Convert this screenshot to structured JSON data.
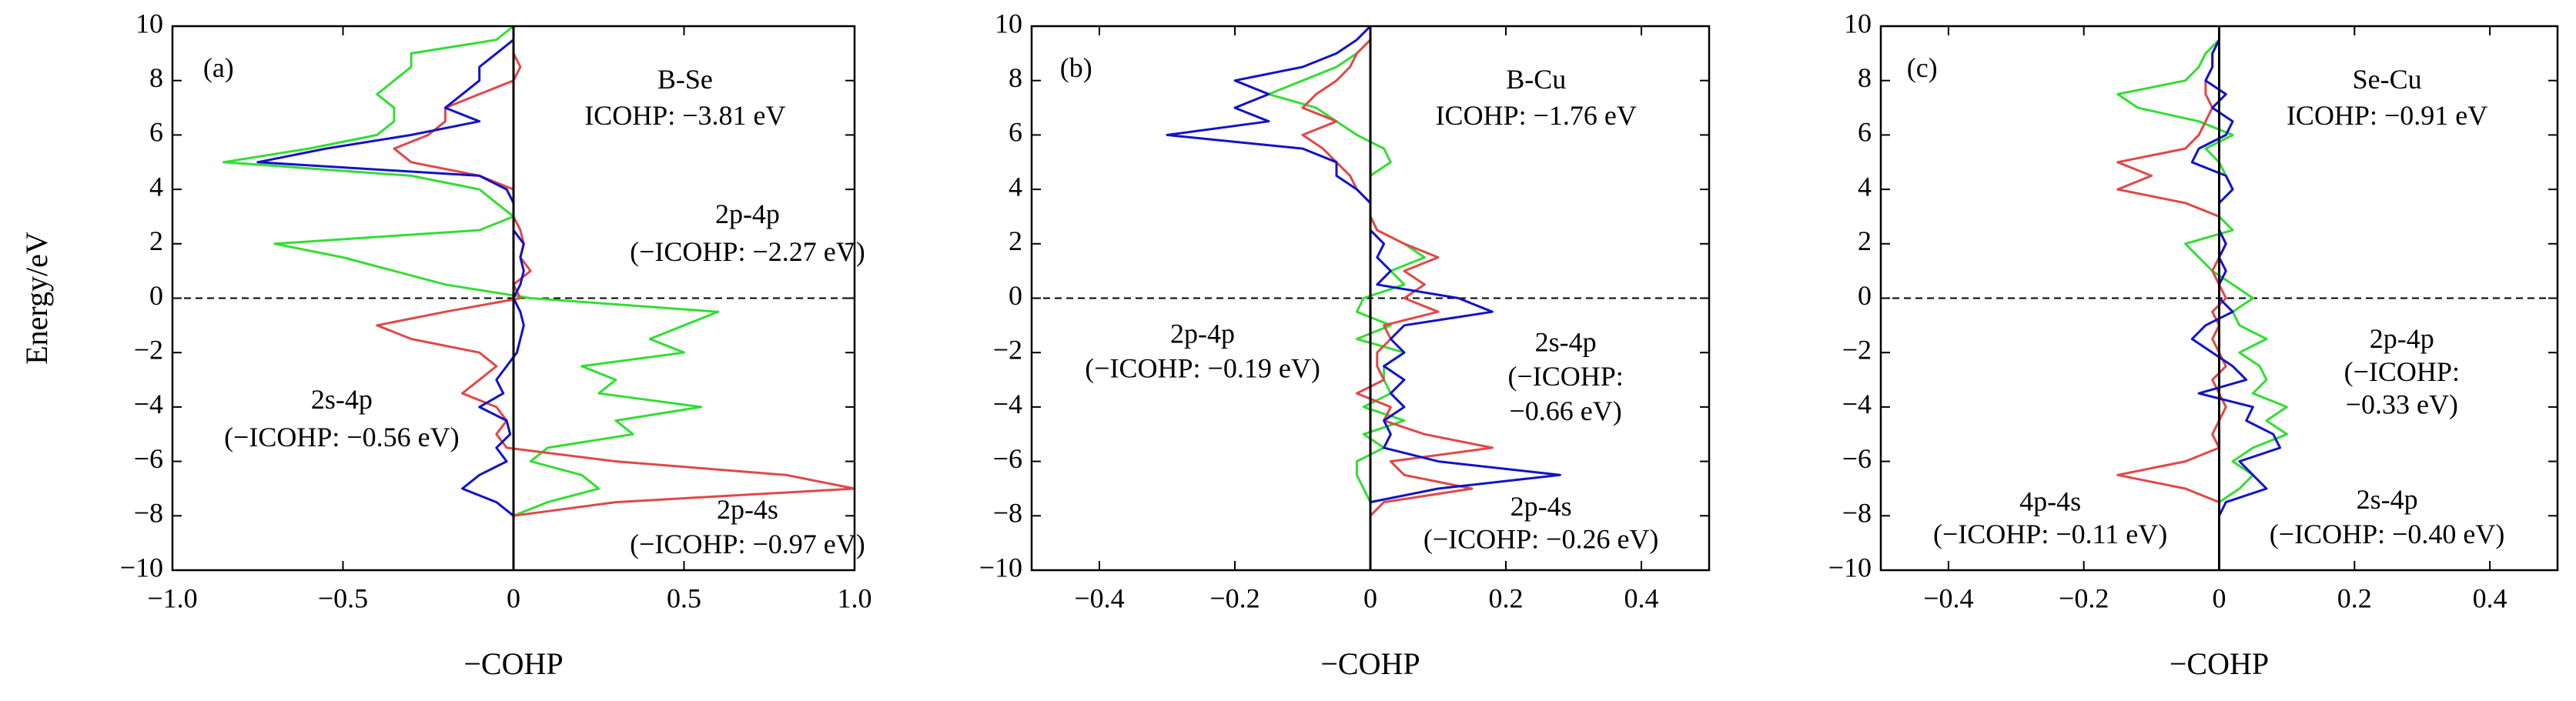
{
  "chart_data": [
    {
      "type": "line",
      "panel_label": "(a)",
      "title": "B-Se",
      "subtitle": "ICOHP: −3.81 eV",
      "ylabel": "Energy/eV",
      "xlabel": "−COHP",
      "xlim": [
        -1,
        1
      ],
      "xticks": [
        {
          "value": -1,
          "label": "−1.0"
        },
        {
          "value": -0.5,
          "label": "−0.5"
        },
        0,
        0.5,
        {
          "value": 1,
          "label": "1.0"
        }
      ],
      "ylim": [
        -10,
        10
      ],
      "yticks": [
        {
          "value": -10,
          "label": "−10"
        },
        {
          "value": -8,
          "label": "−8"
        },
        {
          "value": -6,
          "label": "−6"
        },
        {
          "value": -4,
          "label": "−4"
        },
        {
          "value": -2,
          "label": "−2"
        },
        0,
        2,
        4,
        6,
        8,
        10
      ],
      "y": [
        10,
        9.5,
        9,
        8.5,
        8,
        7.5,
        7,
        6.5,
        6,
        5.5,
        5,
        4.5,
        4,
        3.5,
        3,
        2.5,
        2,
        1.5,
        1,
        0.5,
        0,
        -0.5,
        -1,
        -1.5,
        -2,
        -2.5,
        -3,
        -3.5,
        -4,
        -4.5,
        -5,
        -5.5,
        -6,
        -6.5,
        -7,
        -7.5,
        -8
      ],
      "series": [
        {
          "name": "2p-4p",
          "color": "#33dd33",
          "values": [
            0,
            -0.05,
            -0.3,
            -0.3,
            -0.35,
            -0.4,
            -0.35,
            -0.35,
            -0.4,
            -0.6,
            -0.85,
            -0.3,
            -0.1,
            -0.05,
            0,
            -0.1,
            -0.7,
            -0.5,
            -0.35,
            -0.2,
            0.05,
            0.6,
            0.5,
            0.4,
            0.5,
            0.2,
            0.3,
            0.25,
            0.55,
            0.3,
            0.35,
            0.1,
            0.05,
            0.2,
            0.25,
            0.1,
            0
          ]
        },
        {
          "name": "2p-4s",
          "color": "#e04848",
          "values": [
            0,
            0,
            0,
            0.02,
            0,
            -0.1,
            -0.2,
            -0.2,
            -0.25,
            -0.35,
            -0.3,
            -0.1,
            0,
            0,
            0,
            0.02,
            0.03,
            0.02,
            0.05,
            0,
            0.02,
            -0.2,
            -0.4,
            -0.3,
            -0.1,
            -0.05,
            -0.1,
            -0.15,
            -0.05,
            -0.02,
            -0.05,
            -0.02,
            0.3,
            0.8,
            1.0,
            0.3,
            0
          ]
        },
        {
          "name": "2s-4p",
          "color": "#1212c8",
          "values": [
            0,
            0,
            -0.05,
            -0.1,
            -0.1,
            -0.15,
            -0.2,
            -0.1,
            -0.3,
            -0.55,
            -0.75,
            -0.1,
            -0.02,
            0,
            0,
            0,
            0.03,
            0.02,
            0.03,
            0.02,
            0,
            0.02,
            0.03,
            0.02,
            0.01,
            -0.02,
            -0.05,
            -0.03,
            -0.1,
            -0.02,
            -0.01,
            -0.05,
            -0.02,
            -0.1,
            -0.15,
            -0.05,
            0
          ]
        }
      ],
      "annotations": [
        {
          "color": "#33dd33",
          "lines": [
            "2p-4p",
            "(−ICOHP: −2.27 eV)"
          ]
        },
        {
          "color": "#1212c8",
          "lines": [
            "2s-4p",
            "(−ICOHP: −0.56 eV)"
          ]
        },
        {
          "color": "#e04848",
          "lines": [
            "2p-4s",
            "(−ICOHP: −0.97 eV)"
          ]
        }
      ]
    },
    {
      "type": "line",
      "panel_label": "(b)",
      "title": "B-Cu",
      "subtitle": "ICOHP: −1.76 eV",
      "xlabel": "−COHP",
      "xlim": [
        -0.5,
        0.5
      ],
      "xticks": [
        {
          "value": -0.4,
          "label": "−0.4"
        },
        {
          "value": -0.2,
          "label": "−0.2"
        },
        0,
        0.2,
        0.4
      ],
      "ylim": [
        -10,
        10
      ],
      "yticks": [
        {
          "value": -10,
          "label": "−10"
        },
        {
          "value": -8,
          "label": "−8"
        },
        {
          "value": -6,
          "label": "−6"
        },
        {
          "value": -4,
          "label": "−4"
        },
        {
          "value": -2,
          "label": "−2"
        },
        0,
        2,
        4,
        6,
        8,
        10
      ],
      "y": [
        10,
        9.5,
        9,
        8.5,
        8,
        7.5,
        7,
        6.5,
        6,
        5.5,
        5,
        4.5,
        4,
        3.5,
        3,
        2.5,
        2,
        1.5,
        1,
        0.5,
        0,
        -0.5,
        -1,
        -1.5,
        -2,
        -2.5,
        -3,
        -3.5,
        -4,
        -4.5,
        -5,
        -5.5,
        -6,
        -6.5,
        -7,
        -7.5,
        -8
      ],
      "series": [
        {
          "name": "2p-4p",
          "color": "#33dd33",
          "values": [
            0,
            0,
            -0.02,
            -0.05,
            -0.1,
            -0.15,
            -0.08,
            -0.05,
            -0.02,
            0.02,
            0.03,
            0,
            0,
            0,
            0,
            0.01,
            0.05,
            0.08,
            0.03,
            0.05,
            -0.01,
            -0.02,
            0.03,
            -0.02,
            0.05,
            0.02,
            0.02,
            0.03,
            -0.01,
            0.05,
            -0.01,
            0.02,
            -0.02,
            -0.02,
            -0.01,
            0,
            0
          ]
        },
        {
          "name": "2p-4s",
          "color": "#e04848",
          "values": [
            0,
            0,
            -0.02,
            -0.03,
            -0.05,
            -0.08,
            -0.1,
            -0.05,
            -0.1,
            -0.07,
            -0.05,
            -0.03,
            -0.02,
            0,
            0,
            0.01,
            0.05,
            0.1,
            0.05,
            0.08,
            0.05,
            0.1,
            0.02,
            0.03,
            0.01,
            0.01,
            0.02,
            -0.02,
            0.03,
            0.02,
            0.08,
            0.18,
            0.03,
            0.05,
            0.15,
            0.02,
            0
          ]
        },
        {
          "name": "2s-4p",
          "color": "#1212c8",
          "values": [
            0,
            -0.02,
            -0.05,
            -0.1,
            -0.2,
            -0.15,
            -0.2,
            -0.15,
            -0.3,
            -0.1,
            -0.05,
            -0.05,
            -0.02,
            0,
            0,
            0,
            0.02,
            0.01,
            0.03,
            0.01,
            0.13,
            0.18,
            0.05,
            0.03,
            0.05,
            0.02,
            0.05,
            0.03,
            0.05,
            0.02,
            0.03,
            0.02,
            0.1,
            0.28,
            0.1,
            0,
            0
          ]
        }
      ],
      "annotations": [
        {
          "color": "#33dd33",
          "lines": [
            "2p-4p",
            "(−ICOHP: −0.19 eV)"
          ]
        },
        {
          "color": "#1212c8",
          "lines": [
            "2s-4p",
            "(−ICOHP:",
            "−0.66 eV)"
          ]
        },
        {
          "color": "#e04848",
          "lines": [
            "2p-4s",
            "(−ICOHP: −0.26 eV)"
          ]
        }
      ]
    },
    {
      "type": "line",
      "panel_label": "(c)",
      "title": "Se-Cu",
      "subtitle": "ICOHP: −0.91 eV",
      "xlabel": "−COHP",
      "xlim": [
        -0.5,
        0.5
      ],
      "xticks": [
        {
          "value": -0.4,
          "label": "−0.4"
        },
        {
          "value": -0.2,
          "label": "−0.2"
        },
        0,
        0.2,
        0.4
      ],
      "ylim": [
        -10,
        10
      ],
      "yticks": [
        {
          "value": -10,
          "label": "−10"
        },
        {
          "value": -8,
          "label": "−8"
        },
        {
          "value": -6,
          "label": "−6"
        },
        {
          "value": -4,
          "label": "−4"
        },
        {
          "value": -2,
          "label": "−2"
        },
        0,
        2,
        4,
        6,
        8,
        10
      ],
      "y": [
        10,
        9.5,
        9,
        8.5,
        8,
        7.5,
        7,
        6.5,
        6,
        5.5,
        5,
        4.5,
        4,
        3.5,
        3,
        2.5,
        2,
        1.5,
        1,
        0.5,
        0,
        -0.5,
        -1,
        -1.5,
        -2,
        -2.5,
        -3,
        -3.5,
        -4,
        -4.5,
        -5,
        -5.5,
        -6,
        -6.5,
        -7,
        -7.5,
        -8
      ],
      "series": [
        {
          "name": "2p-4p",
          "color": "#33dd33",
          "values": [
            0,
            0,
            -0.02,
            -0.03,
            -0.05,
            -0.15,
            -0.12,
            -0.03,
            0.02,
            -0.02,
            0,
            0.01,
            0.02,
            0,
            0,
            0.02,
            -0.05,
            -0.03,
            -0.01,
            0.02,
            0.05,
            0.02,
            0.03,
            0.07,
            0.03,
            0.06,
            0.07,
            0.05,
            0.1,
            0.07,
            0.1,
            0.05,
            0.02,
            0.05,
            0.03,
            0,
            0
          ]
        },
        {
          "name": "4p-4s",
          "color": "#e04848",
          "values": [
            0,
            0,
            -0.01,
            -0.01,
            -0.02,
            -0.02,
            -0.01,
            -0.02,
            -0.03,
            -0.05,
            -0.15,
            -0.1,
            -0.15,
            -0.05,
            0,
            0,
            0.01,
            0,
            -0.01,
            0,
            0.01,
            -0.01,
            0,
            -0.01,
            0,
            0.01,
            -0.01,
            0,
            0.01,
            0,
            -0.01,
            0,
            -0.05,
            -0.15,
            -0.05,
            0,
            0
          ]
        },
        {
          "name": "2s-4p",
          "color": "#1212c8",
          "values": [
            0,
            0,
            -0.01,
            -0.01,
            -0.02,
            0.01,
            -0.01,
            0.02,
            0.01,
            -0.03,
            -0.04,
            0.01,
            0.02,
            0,
            0,
            0,
            0.01,
            0,
            0.01,
            0,
            0,
            0.02,
            -0.02,
            -0.04,
            -0.01,
            0.02,
            0.04,
            -0.03,
            0.05,
            0.04,
            0.08,
            0.09,
            0.03,
            0.05,
            0.07,
            0.01,
            0
          ]
        }
      ],
      "annotations": [
        {
          "color": "#33dd33",
          "lines": [
            "2p-4p",
            "(−ICOHP:",
            "−0.33 eV)"
          ]
        },
        {
          "color": "#e04848",
          "lines": [
            "4p-4s",
            "(−ICOHP: −0.11 eV)"
          ]
        },
        {
          "color": "#1212c8",
          "lines": [
            "2s-4p",
            "(−ICOHP: −0.40 eV)"
          ]
        }
      ]
    }
  ]
}
